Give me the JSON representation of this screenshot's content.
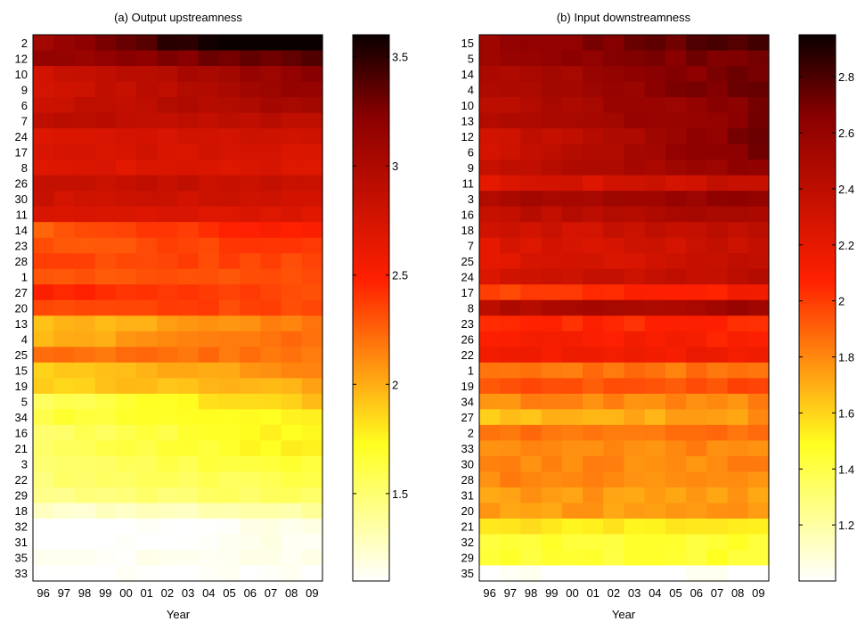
{
  "chart_data": [
    {
      "type": "heatmap",
      "title": "(a) Output upstreamness",
      "xlabel": "Year",
      "ylabel": "",
      "x_categories": [
        "96",
        "97",
        "98",
        "99",
        "00",
        "01",
        "02",
        "03",
        "04",
        "05",
        "06",
        "07",
        "08",
        "09"
      ],
      "y_categories": [
        "2",
        "12",
        "10",
        "9",
        "6",
        "7",
        "24",
        "17",
        "8",
        "26",
        "30",
        "11",
        "14",
        "23",
        "28",
        "1",
        "27",
        "20",
        "13",
        "4",
        "25",
        "15",
        "19",
        "5",
        "34",
        "16",
        "21",
        "3",
        "22",
        "29",
        "18",
        "32",
        "31",
        "35",
        "33"
      ],
      "colorbar": {
        "min": 1.1,
        "max": 3.6,
        "ticks": [
          1.5,
          2,
          2.5,
          3,
          3.5
        ],
        "tick_labels": [
          "1.5",
          "2",
          "2.5",
          "3",
          "3.5"
        ],
        "colormap": "hot"
      },
      "base": [
        3.5,
        3.25,
        3.0,
        2.95,
        2.95,
        2.9,
        2.75,
        2.75,
        2.7,
        2.85,
        2.8,
        2.7,
        2.4,
        2.35,
        2.35,
        2.3,
        2.4,
        2.35,
        2.05,
        2.1,
        2.2,
        2.0,
        1.95,
        1.75,
        1.7,
        1.65,
        1.65,
        1.6,
        1.55,
        1.5,
        1.3,
        1.1,
        1.1,
        1.15,
        1.1
      ],
      "trend": [
        0.06,
        0.02,
        0.03,
        0.03,
        0.02,
        0.0,
        0.01,
        0.0,
        0.0,
        0.0,
        0.0,
        0.0,
        0.02,
        0.01,
        0.0,
        0.0,
        -0.01,
        0.0,
        0.02,
        0.02,
        0.0,
        0.02,
        0.01,
        0.03,
        0.01,
        0.02,
        0.02,
        0.01,
        0.01,
        0.01,
        0.01,
        0.01,
        0.01,
        0.0,
        0.0
      ]
    },
    {
      "type": "heatmap",
      "title": "(b) Input downstreamness",
      "xlabel": "Year",
      "ylabel": "",
      "x_categories": [
        "96",
        "97",
        "98",
        "99",
        "00",
        "01",
        "02",
        "03",
        "04",
        "05",
        "06",
        "07",
        "08",
        "09"
      ],
      "y_categories": [
        "15",
        "5",
        "14",
        "4",
        "10",
        "13",
        "12",
        "6",
        "9",
        "11",
        "3",
        "16",
        "18",
        "7",
        "25",
        "24",
        "17",
        "8",
        "23",
        "26",
        "22",
        "1",
        "19",
        "34",
        "27",
        "2",
        "33",
        "30",
        "28",
        "31",
        "20",
        "21",
        "32",
        "29",
        "35"
      ],
      "colorbar": {
        "min": 1.0,
        "max": 2.95,
        "ticks": [
          1.2,
          1.4,
          1.6,
          1.8,
          2,
          2.2,
          2.4,
          2.6,
          2.8
        ],
        "tick_labels": [
          "1.2",
          "1.4",
          "1.6",
          "1.8",
          "2",
          "2.2",
          "2.4",
          "2.6",
          "2.8"
        ],
        "colormap": "hot"
      },
      "base": [
        2.7,
        2.65,
        2.6,
        2.6,
        2.55,
        2.55,
        2.5,
        2.5,
        2.5,
        2.3,
        2.55,
        2.45,
        2.35,
        2.3,
        2.3,
        2.35,
        2.05,
        2.5,
        2.05,
        2.1,
        2.15,
        1.85,
        1.95,
        1.8,
        1.7,
        1.85,
        1.8,
        1.8,
        1.8,
        1.75,
        1.75,
        1.55,
        1.45,
        1.45,
        1.0
      ],
      "trend": [
        0.02,
        0.01,
        0.02,
        0.02,
        0.02,
        0.02,
        0.03,
        0.03,
        0.02,
        0.01,
        0.01,
        0.01,
        0.01,
        0.01,
        0.01,
        0.01,
        0.01,
        0.01,
        0.0,
        0.0,
        0.0,
        0.0,
        0.0,
        0.0,
        0.01,
        0.0,
        0.0,
        0.0,
        0.0,
        0.0,
        0.0,
        0.0,
        0.0,
        0.0,
        0.0
      ]
    }
  ]
}
